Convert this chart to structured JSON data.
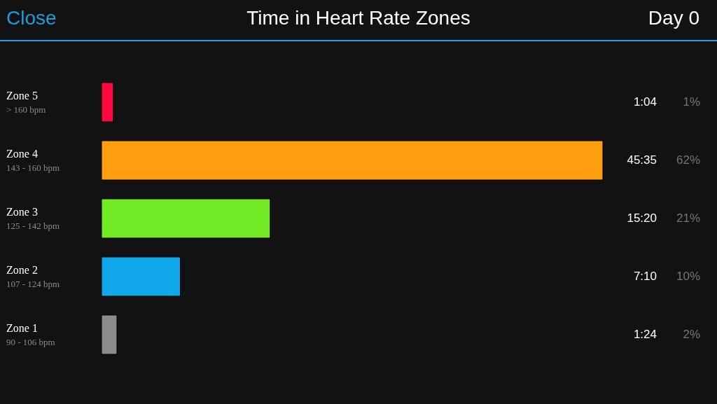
{
  "chart_data": {
    "type": "bar",
    "orientation": "horizontal",
    "tick_labels": "y",
    "title": "Time in Heart Rate Zones",
    "categories": [
      "Zone 5",
      "Zone 4",
      "Zone 3",
      "Zone 2",
      "Zone 1"
    ],
    "values": [
      1.0667,
      45.5833,
      15.3333,
      7.1667,
      1.4
    ],
    "colors": [
      "#ff0a3c",
      "#ff9f10",
      "#72ea26",
      "#10a8ea",
      "#8c8c8c"
    ],
    "value_labels": [
      "1:04",
      "45:35",
      "15:20",
      "7:10",
      "1:24"
    ],
    "annotations": [
      "Close",
      "Day 0",
      "> 160 bpm",
      "143 - 160 bpm",
      "125 - 142 bpm",
      "107 - 124 bpm",
      "90 - 106 bpm",
      "1%",
      "62%",
      "21%",
      "10%",
      "2%"
    ]
  }
}
